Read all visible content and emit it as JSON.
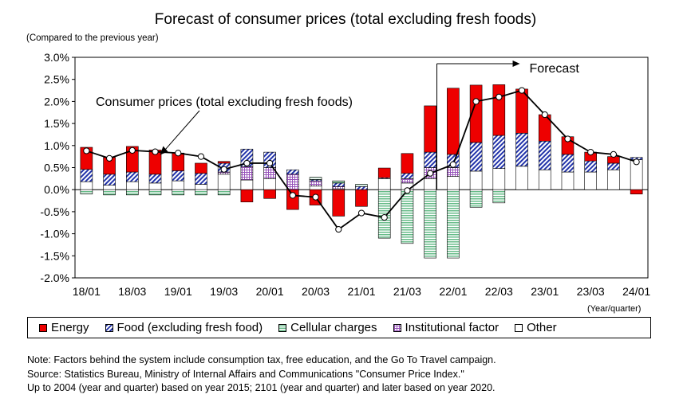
{
  "chart_data": {
    "type": "bar",
    "title": "Forecast of consumer prices (total excluding fresh foods)",
    "y_unit_label": "(Compared to the previous year)",
    "x_unit_label": "(Year/quarter)",
    "ylim": [
      -2.0,
      3.0
    ],
    "y_ticks": [
      "3.0%",
      "2.5%",
      "2.0%",
      "1.5%",
      "1.0%",
      "0.5%",
      "0.0%",
      "-0.5%",
      "-1.0%",
      "-1.5%",
      "-2.0%"
    ],
    "x_tick_labels": [
      "18/01",
      "18/03",
      "19/01",
      "19/03",
      "20/01",
      "20/03",
      "21/01",
      "21/03",
      "22/01",
      "22/03",
      "23/01",
      "23/03",
      "24/01"
    ],
    "categories": [
      "18/01",
      "18/02",
      "18/03",
      "18/04",
      "19/01",
      "19/02",
      "19/03",
      "19/04",
      "20/01",
      "20/02",
      "20/03",
      "20/04",
      "21/01",
      "21/02",
      "21/03",
      "21/04",
      "22/01",
      "22/02",
      "22/03",
      "22/04",
      "23/01",
      "23/02",
      "23/03",
      "23/04",
      "24/01"
    ],
    "forecast_start_index": 16,
    "series": [
      {
        "name": "Energy",
        "color": "#ee0000",
        "values": [
          0.5,
          0.38,
          0.58,
          0.55,
          0.4,
          0.23,
          0.04,
          -0.28,
          -0.2,
          -0.45,
          -0.35,
          -0.6,
          -0.38,
          0.22,
          0.45,
          1.05,
          1.5,
          1.3,
          1.15,
          1.0,
          0.6,
          0.4,
          0.2,
          0.15,
          -0.1
        ]
      },
      {
        "name": "Food (excluding fresh food)",
        "color": "#2233aa",
        "values": [
          0.28,
          0.25,
          0.22,
          0.2,
          0.23,
          0.25,
          0.2,
          0.4,
          0.35,
          0.1,
          0.03,
          0.08,
          0.07,
          0.02,
          0.12,
          0.35,
          0.3,
          0.65,
          0.75,
          0.75,
          0.65,
          0.4,
          0.25,
          0.15,
          0.05
        ]
      },
      {
        "name": "Cellular charges",
        "color": "#88cc99",
        "values": [
          -0.1,
          -0.12,
          -0.12,
          -0.12,
          -0.12,
          -0.12,
          -0.12,
          0.0,
          0.0,
          0.0,
          0.05,
          0.05,
          0.05,
          -1.1,
          -1.22,
          -1.55,
          -1.55,
          -0.4,
          -0.3,
          0.0,
          0.0,
          0.0,
          0.0,
          0.0,
          0.0
        ]
      },
      {
        "name": "Institutional factor",
        "color": "#9955bb",
        "values": [
          0.0,
          0.0,
          0.0,
          0.0,
          0.0,
          0.0,
          0.05,
          0.3,
          0.25,
          0.35,
          0.12,
          0.05,
          0.0,
          0.0,
          0.1,
          0.25,
          0.2,
          0.0,
          0.0,
          0.0,
          0.0,
          0.0,
          0.0,
          0.0,
          0.0
        ]
      },
      {
        "name": "Other",
        "color": "#ffffff",
        "values": [
          0.18,
          0.1,
          0.18,
          0.15,
          0.2,
          0.12,
          0.35,
          0.22,
          0.25,
          0.0,
          0.08,
          0.02,
          0.0,
          0.25,
          0.15,
          0.25,
          0.3,
          0.42,
          0.48,
          0.53,
          0.45,
          0.4,
          0.4,
          0.45,
          0.68
        ]
      },
      {
        "name": "Consumer prices (total excluding fresh foods)",
        "type": "line",
        "color": "#000000",
        "values": [
          0.88,
          0.71,
          0.89,
          0.86,
          0.83,
          0.75,
          0.46,
          0.6,
          0.6,
          -0.13,
          -0.17,
          -0.9,
          -0.53,
          -0.63,
          -0.02,
          0.37,
          0.57,
          2.0,
          2.1,
          2.25,
          1.7,
          1.15,
          0.85,
          0.8,
          0.63
        ]
      }
    ],
    "annotations": {
      "line_label": "Consumer prices (total excluding fresh foods)",
      "forecast_label": "Forecast"
    },
    "grid": false,
    "legend_position": "bottom"
  },
  "legend": [
    {
      "label": "Energy",
      "color": "#ee0000"
    },
    {
      "label": "Food (excluding fresh food)",
      "color": "#2233aa"
    },
    {
      "label": "Cellular charges",
      "color": "#88cc99"
    },
    {
      "label": "Institutional factor",
      "color": "#9955bb"
    },
    {
      "label": "Other",
      "color": "#ffffff"
    }
  ],
  "notes": [
    "Note: Factors behind the system include consumption tax, free education, and the Go To Travel campaign.",
    "Source: Statistics Bureau, Ministry of Internal Affairs and Communications \"Consumer Price Index.\"",
    "Up to 2004 (year and quarter) based on year 2015; 2101 (year and quarter) and later based on year 2020."
  ]
}
